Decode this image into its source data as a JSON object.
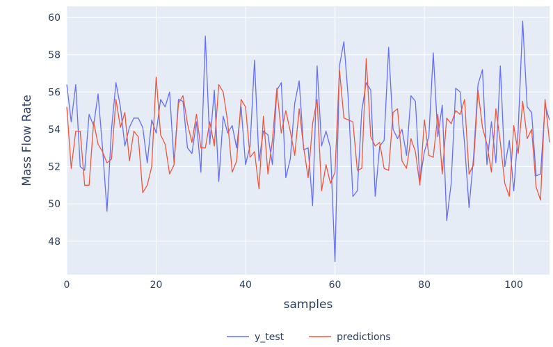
{
  "chart_data": {
    "type": "line",
    "title": "",
    "xlabel": "samples",
    "ylabel": "Mass Flow Rate",
    "xlim": [
      0,
      108
    ],
    "ylim": [
      46.2,
      60.6
    ],
    "xticks": [
      0,
      20,
      40,
      60,
      80,
      100
    ],
    "yticks": [
      48,
      50,
      52,
      54,
      56,
      58,
      60
    ],
    "grid": true,
    "legend": "bottom-center",
    "colors": {
      "plot_bg": "#e5ecf6",
      "grid": "#ffffff",
      "text": "#2a3f5f"
    },
    "series": [
      {
        "name": "y_test",
        "color": "#636efa",
        "values": [
          56.4,
          54.4,
          56.4,
          52.0,
          51.8,
          54.8,
          54.2,
          55.9,
          53.0,
          49.6,
          54.0,
          56.5,
          55.2,
          53.1,
          54.1,
          54.6,
          54.6,
          54.1,
          52.2,
          54.5,
          53.8,
          55.6,
          55.2,
          56.0,
          52.2,
          55.6,
          55.5,
          53.0,
          52.7,
          54.4,
          51.7,
          59.0,
          53.2,
          56.1,
          51.2,
          54.7,
          53.8,
          54.2,
          53.0,
          55.2,
          52.1,
          53.1,
          57.7,
          52.3,
          53.9,
          53.7,
          52.1,
          56.1,
          56.5,
          51.4,
          52.4,
          55.4,
          56.6,
          52.9,
          53.0,
          49.9,
          57.4,
          53.1,
          53.9,
          53.0,
          46.9,
          57.4,
          58.7,
          55.6,
          50.4,
          50.7,
          55.0,
          56.5,
          56.1,
          50.4,
          53.1,
          53.4,
          58.4,
          54.0,
          53.5,
          54.0,
          52.6,
          55.8,
          55.5,
          51.2,
          52.8,
          53.6,
          58.1,
          53.6,
          55.3,
          49.1,
          51.1,
          56.2,
          56.0,
          53.2,
          49.8,
          52.5,
          56.4,
          57.2,
          52.1,
          54.4,
          52.2,
          57.4,
          52.0,
          53.4,
          50.7,
          54.0,
          59.8,
          55.2,
          54.9,
          51.5,
          51.6,
          55.3,
          54.5
        ]
      },
      {
        "name": "predictions",
        "color": "#ef553b",
        "values": [
          55.2,
          51.9,
          53.9,
          53.9,
          51.0,
          51.0,
          54.4,
          53.2,
          52.8,
          52.2,
          52.4,
          55.6,
          54.1,
          54.9,
          52.3,
          53.9,
          53.6,
          50.6,
          51.0,
          52.0,
          56.8,
          53.7,
          53.2,
          51.6,
          52.1,
          55.4,
          55.8,
          54.3,
          53.3,
          54.8,
          53.0,
          53.0,
          54.4,
          53.1,
          56.4,
          56.0,
          54.4,
          51.7,
          52.3,
          55.6,
          55.2,
          52.5,
          52.8,
          50.8,
          54.7,
          51.6,
          53.4,
          56.2,
          53.8,
          55.0,
          53.9,
          52.6,
          55.1,
          53.0,
          51.4,
          54.3,
          55.6,
          50.7,
          52.1,
          51.1,
          51.7,
          57.2,
          54.6,
          54.5,
          54.4,
          51.8,
          51.9,
          57.8,
          53.6,
          53.1,
          53.3,
          51.9,
          51.8,
          54.9,
          55.1,
          52.3,
          51.9,
          53.5,
          52.8,
          51.0,
          54.5,
          52.6,
          52.5,
          54.8,
          51.6,
          54.6,
          54.3,
          55.0,
          54.8,
          55.6,
          51.6,
          52.1,
          56.1,
          54.1,
          53.2,
          51.7,
          55.1,
          53.3,
          51.1,
          50.4,
          54.2,
          52.7,
          55.5,
          53.5,
          54.0,
          50.9,
          50.2,
          55.6,
          53.3
        ]
      }
    ]
  }
}
